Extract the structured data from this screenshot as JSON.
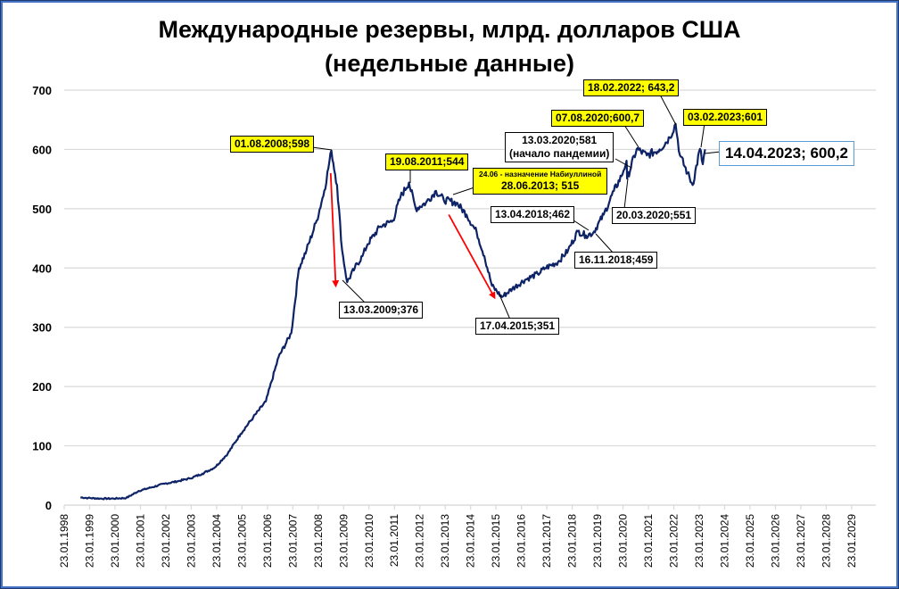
{
  "chart_data": {
    "type": "line",
    "title": "Международные резервы, млрд. долларов США",
    "subtitle": "(недельные данные)",
    "xlabel": "",
    "ylabel": "",
    "ylim": [
      0,
      700
    ],
    "yticks": [
      "0",
      "100",
      "200",
      "300",
      "400",
      "500",
      "600",
      "700"
    ],
    "xticks": [
      "23.01.1998",
      "23.01.1999",
      "23.01.2000",
      "23.01.2001",
      "23.01.2002",
      "23.01.2003",
      "23.01.2004",
      "23.01.2005",
      "23.01.2006",
      "23.01.2007",
      "23.01.2008",
      "23.01.2009",
      "23.01.2010",
      "23.01.2011",
      "23.01.2012",
      "23.01.2013",
      "23.01.2014",
      "23.01.2015",
      "23.01.2016",
      "23.01.2017",
      "23.01.2018",
      "23.01.2019",
      "23.01.2020",
      "23.01.2021",
      "23.01.2022",
      "23.01.2023",
      "23.01.2024",
      "23.01.2025",
      "23.01.2026",
      "23.01.2027",
      "23.01.2028",
      "23.01.2029"
    ],
    "grid": true,
    "legend": "none",
    "series": [
      {
        "name": "Международные резервы",
        "color": "#0d2366",
        "x": [
          1998.7,
          1999.0,
          1999.5,
          2000.0,
          2000.5,
          2001.0,
          2001.5,
          2002.0,
          2002.5,
          2003.0,
          2003.5,
          2004.0,
          2004.5,
          2005.0,
          2005.5,
          2006.0,
          2006.5,
          2007.0,
          2007.3,
          2007.6,
          2008.0,
          2008.3,
          2008.58,
          2008.8,
          2009.0,
          2009.2,
          2009.5,
          2009.8,
          2010.0,
          2010.5,
          2011.0,
          2011.3,
          2011.63,
          2011.9,
          2012.3,
          2012.7,
          2013.0,
          2013.5,
          2013.9,
          2014.3,
          2014.6,
          2014.9,
          2015.29,
          2015.7,
          2016.2,
          2016.7,
          2017.0,
          2017.5,
          2017.9,
          2018.28,
          2018.6,
          2018.88,
          2019.3,
          2019.7,
          2020.0,
          2020.2,
          2020.22,
          2020.6,
          2021.0,
          2021.5,
          2021.9,
          2022.13,
          2022.3,
          2022.6,
          2022.8,
          2023.09,
          2023.2,
          2023.29
        ],
        "values": [
          13,
          12,
          11,
          11,
          12,
          24,
          30,
          36,
          40,
          45,
          53,
          64,
          87,
          120,
          148,
          175,
          250,
          290,
          400,
          430,
          480,
          530,
          598,
          540,
          430,
          376,
          400,
          420,
          440,
          470,
          480,
          520,
          544,
          500,
          510,
          530,
          515,
          510,
          490,
          460,
          420,
          370,
          351,
          365,
          380,
          390,
          400,
          410,
          430,
          462,
          455,
          459,
          490,
          530,
          555,
          581,
          551,
          600.7,
          590,
          600,
          620,
          643.2,
          590,
          560,
          540,
          601,
          575,
          600.2
        ]
      }
    ],
    "annotations": [
      {
        "label": "01.08.2008;598",
        "style": "yellow",
        "date": "01.08.2008",
        "value": 598
      },
      {
        "label": "19.08.2011;544",
        "style": "yellow",
        "date": "19.08.2011",
        "value": 544
      },
      {
        "label": "24.06 - назначение Набиуллиной",
        "label2": "28.06.2013; 515",
        "style": "yellow",
        "date": "28.06.2013",
        "value": 515
      },
      {
        "label": "07.08.2020;600,7",
        "style": "yellow",
        "date": "07.08.2020",
        "value": 600.7
      },
      {
        "label": "18.02.2022; 643,2",
        "style": "yellow",
        "date": "18.02.2022",
        "value": 643.2
      },
      {
        "label": "03.02.2023;601",
        "style": "yellow",
        "date": "03.02.2023",
        "value": 601
      },
      {
        "label": "13.03.2020;581",
        "label2": "(начало пандемии)",
        "style": "white",
        "date": "13.03.2020",
        "value": 581
      },
      {
        "label": "13.03.2009;376",
        "style": "white",
        "date": "13.03.2009",
        "value": 376
      },
      {
        "label": "17.04.2015;351",
        "style": "white",
        "date": "17.04.2015",
        "value": 351
      },
      {
        "label": "13.04.2018;462",
        "style": "white",
        "date": "13.04.2018",
        "value": 462
      },
      {
        "label": "16.11.2018;459",
        "style": "white",
        "date": "16.11.2018",
        "value": 459
      },
      {
        "label": "20.03.2020;551",
        "style": "white",
        "date": "20.03.2020",
        "value": 551
      },
      {
        "label": "14.04.2023; 600,2",
        "style": "highlight",
        "date": "14.04.2023",
        "value": 600.2
      }
    ],
    "arrows": [
      {
        "from": [
          2008.55,
          560
        ],
        "to": [
          2008.75,
          370
        ],
        "color": "#ff0000"
      },
      {
        "from": [
          2013.2,
          490
        ],
        "to": [
          2015.0,
          350
        ],
        "color": "#ff0000"
      }
    ]
  },
  "title": {
    "line1": "Международные резервы, млрд. долларов США",
    "line2": "(недельные данные)"
  }
}
